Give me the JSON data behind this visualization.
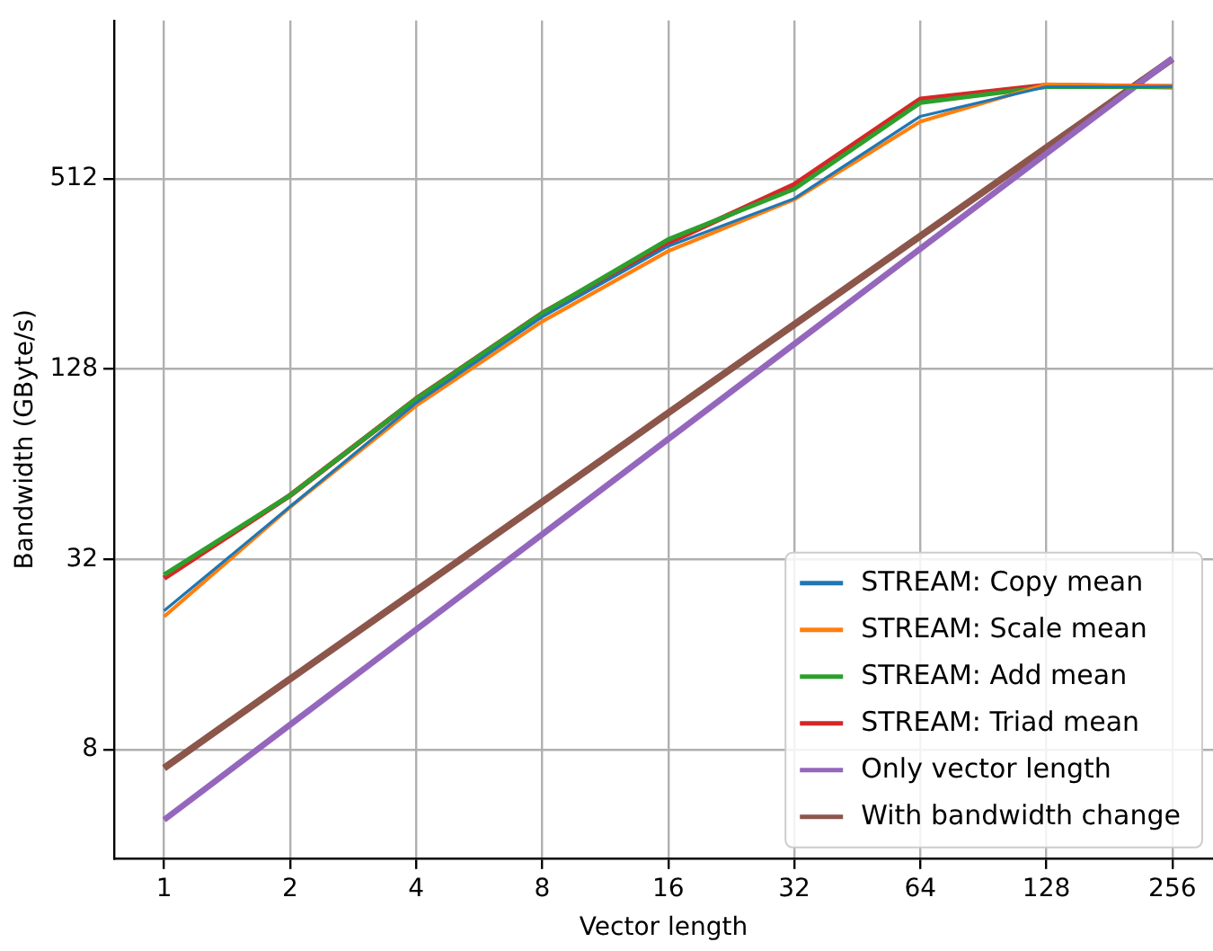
{
  "chart_data": {
    "type": "line",
    "xlabel": "Vector length",
    "ylabel": "Bandwidth (GByte/s)",
    "x": [
      1,
      2,
      4,
      8,
      16,
      32,
      64,
      128,
      256
    ],
    "series": [
      {
        "name": "STREAM: Copy mean",
        "color": "#1f77b4",
        "values": [
          22,
          47,
          100,
          187,
          313,
          443,
          806,
          1000,
          1000
        ]
      },
      {
        "name": "STREAM: Scale mean",
        "color": "#ff7f0e",
        "values": [
          21.1,
          46.8,
          98,
          181,
          302,
          440,
          776,
          1018,
          1000
        ]
      },
      {
        "name": "STREAM: Add mean",
        "color": "#2ca02c",
        "values": [
          28.6,
          51,
          103,
          192,
          329,
          475,
          890,
          1000,
          1000
        ]
      },
      {
        "name": "STREAM: Triad mean",
        "color": "#d62728",
        "values": [
          27.9,
          51,
          103,
          192,
          321,
          490,
          913,
          1010,
          1000
        ]
      },
      {
        "name": "Only vector length",
        "color": "#9467bd",
        "values": [
          4.8,
          9.6,
          19.2,
          38.4,
          76.8,
          153.6,
          307.2,
          614.4,
          1228.8
        ]
      },
      {
        "name": "With bandwidth change",
        "color": "#8c564b",
        "values": [
          7,
          13.4,
          25.5,
          48.6,
          93,
          177,
          337,
          642,
          1224
        ]
      }
    ],
    "log": "xy",
    "xlim": [
      0.76,
      320
    ],
    "ylim": [
      3.63,
      1620
    ],
    "xticks": [
      1,
      2,
      4,
      8,
      16,
      32,
      64,
      128,
      256
    ],
    "yticks": [
      8,
      32,
      128,
      512
    ],
    "grid": true,
    "legend": "bottom right",
    "marker": "none",
    "line_style": "solid"
  }
}
